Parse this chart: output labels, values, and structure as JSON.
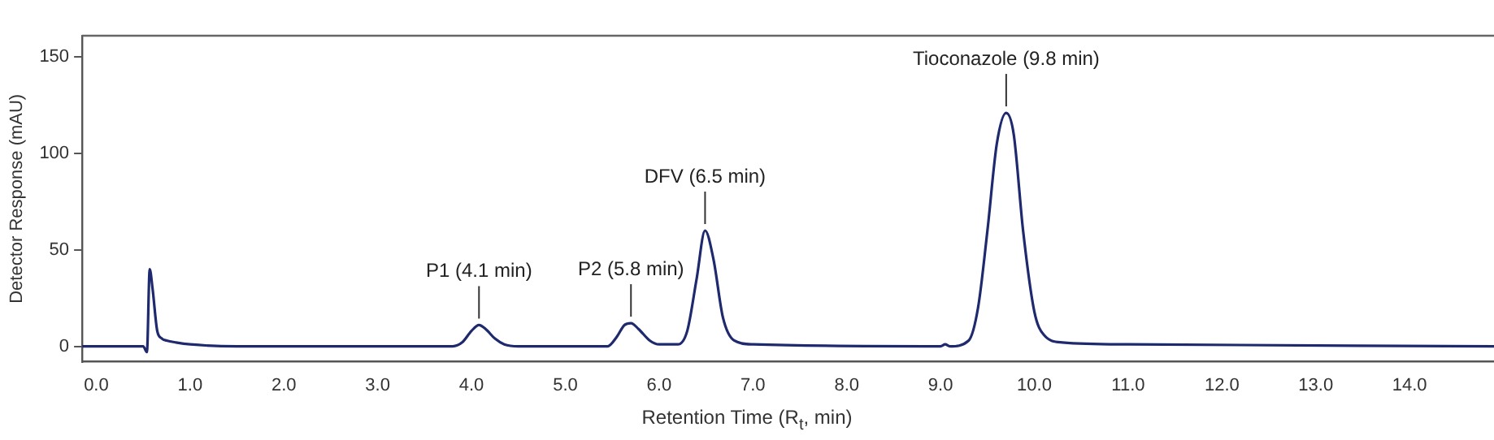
{
  "chart_data": {
    "type": "line",
    "xlabel": "Retention Time (R$_{t}$, min)",
    "ylabel": "Detector Response (mAU)",
    "xlim": [
      -0.15,
      14.9
    ],
    "ylim": [
      -8,
      161
    ],
    "xticks": [
      {
        "value": 0,
        "label": "0.0"
      },
      {
        "value": 1,
        "label": "1.0"
      },
      {
        "value": 2,
        "label": "2.0"
      },
      {
        "value": 3,
        "label": "3.0"
      },
      {
        "value": 4,
        "label": "4.0"
      },
      {
        "value": 5,
        "label": "5.0"
      },
      {
        "value": 6,
        "label": "6.0"
      },
      {
        "value": 7,
        "label": "7.0"
      },
      {
        "value": 8,
        "label": "8.0"
      },
      {
        "value": 9,
        "label": "9.0"
      },
      {
        "value": 10,
        "label": "10.0"
      },
      {
        "value": 11,
        "label": "11.0"
      },
      {
        "value": 12,
        "label": "12.0"
      },
      {
        "value": 13,
        "label": "13.0"
      },
      {
        "value": 14,
        "label": "14.0"
      }
    ],
    "yticks": [
      0,
      50,
      100,
      150
    ],
    "grid": false,
    "legend": false,
    "marker": "none",
    "line_style": "solid",
    "series": [
      {
        "color": "#1f2a6e",
        "x": [
          -0.15,
          0.5,
          0.54,
          0.57,
          0.6,
          0.65,
          0.7,
          0.75,
          0.85,
          1.0,
          1.5,
          3.8,
          3.9,
          4.0,
          4.08,
          4.15,
          4.25,
          4.35,
          4.5,
          5.45,
          5.55,
          5.63,
          5.7,
          5.78,
          5.9,
          6.0,
          6.2,
          6.3,
          6.4,
          6.49,
          6.58,
          6.68,
          6.8,
          7.0,
          9.0,
          9.05,
          9.1,
          9.3,
          9.4,
          9.5,
          9.6,
          9.7,
          9.78,
          9.88,
          10.0,
          10.1,
          10.3,
          11.0,
          14.9
        ],
        "values": [
          0,
          0,
          -3,
          40,
          30,
          8,
          4,
          3,
          2,
          1,
          0,
          0,
          2,
          8,
          11,
          9,
          4,
          1,
          0,
          0,
          5,
          11,
          12,
          9,
          3,
          1,
          1,
          8,
          35,
          60,
          45,
          15,
          3,
          1,
          0,
          1,
          0,
          3,
          20,
          60,
          105,
          121,
          110,
          60,
          18,
          6,
          2,
          1,
          0
        ]
      }
    ],
    "annotations": [
      {
        "text": "P1 (4.1 min)",
        "x": 4.08,
        "y": 11
      },
      {
        "text": "P2 (5.8 min)",
        "x": 5.7,
        "y": 12
      },
      {
        "text": "DFV (6.5 min)",
        "x": 6.49,
        "y": 60
      },
      {
        "text": "Tioconazole (9.8 min)",
        "x": 9.7,
        "y": 121
      }
    ]
  }
}
